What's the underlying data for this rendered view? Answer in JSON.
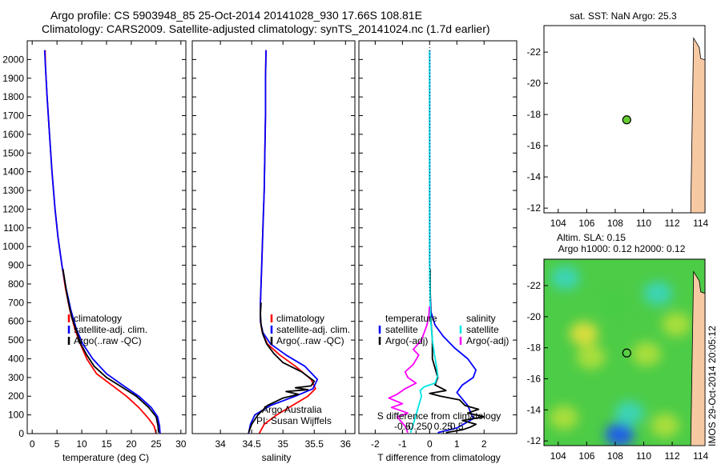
{
  "page": {
    "title_line1": "Argo profile: CS 5903948_85 25-Oct-2014 20141028_930 17.66S 108.81E",
    "title_line2": "Climatology: CARS2009. Satellite-adjusted climatology: synTS_20141024.nc (1.7d earlier)",
    "footer_vertical": "IMOS 29-Oct-2014 20:05:12"
  },
  "colors": {
    "climatology": "#ff0000",
    "satellite": "#0000ff",
    "argo": "#000000",
    "sal_satellite": "#00e5e5",
    "sal_argo": "#ff00ff",
    "marker": "#66cc33",
    "land": "#f7c9a3"
  },
  "chart_data": [
    {
      "id": "temperature",
      "type": "line",
      "xlabel": "temperature (deg C)",
      "xlim": [
        -1,
        31
      ],
      "ylim": [
        2100,
        0
      ],
      "xticks": [
        0,
        5,
        10,
        15,
        20,
        25,
        30
      ],
      "xtick_labels": [
        "0",
        "5",
        "10",
        "15",
        "20",
        "25",
        "30"
      ],
      "yticks": [
        0,
        100,
        200,
        300,
        400,
        500,
        600,
        700,
        800,
        900,
        1000,
        1100,
        1200,
        1300,
        1400,
        1500,
        1600,
        1700,
        1800,
        1900,
        2000
      ],
      "ytick_labels": [
        "0",
        "100",
        "200",
        "300",
        "400",
        "500",
        "600",
        "700",
        "800",
        "900",
        "1000",
        "1100",
        "1200",
        "1300",
        "1400",
        "1500",
        "1600",
        "1700",
        "1800",
        "1900",
        "2000"
      ],
      "legend": [
        "climatology",
        "satellite-adj. clim.",
        "Argo(..raw -QC)"
      ],
      "series": [
        {
          "name": "climatology",
          "color_key": "climatology",
          "points": [
            [
              25.0,
              0
            ],
            [
              24.6,
              40
            ],
            [
              23.5,
              80
            ],
            [
              21.5,
              140
            ],
            [
              19.0,
              200
            ],
            [
              16.0,
              260
            ],
            [
              13.0,
              320
            ],
            [
              11.0,
              400
            ],
            [
              9.7,
              480
            ],
            [
              8.6,
              560
            ],
            [
              7.6,
              660
            ],
            [
              6.7,
              780
            ],
            [
              6.0,
              900
            ],
            [
              5.2,
              1050
            ],
            [
              4.6,
              1200
            ],
            [
              4.0,
              1400
            ],
            [
              3.5,
              1600
            ],
            [
              3.0,
              1800
            ],
            [
              2.7,
              1950
            ],
            [
              2.6,
              2050
            ]
          ]
        },
        {
          "name": "satellite-adj. clim.",
          "color_key": "satellite",
          "points": [
            [
              25.8,
              0
            ],
            [
              25.7,
              40
            ],
            [
              25.3,
              90
            ],
            [
              24.0,
              140
            ],
            [
              21.5,
              200
            ],
            [
              18.2,
              260
            ],
            [
              15.0,
              320
            ],
            [
              12.2,
              400
            ],
            [
              10.2,
              480
            ],
            [
              8.9,
              560
            ],
            [
              7.8,
              660
            ],
            [
              6.8,
              780
            ],
            [
              6.0,
              900
            ],
            [
              5.2,
              1050
            ],
            [
              4.6,
              1200
            ],
            [
              4.0,
              1400
            ],
            [
              3.5,
              1600
            ],
            [
              3.0,
              1800
            ],
            [
              2.7,
              1950
            ],
            [
              2.5,
              2050
            ]
          ]
        },
        {
          "name": "Argo(..raw -QC)",
          "color_key": "argo",
          "points": [
            [
              25.5,
              5
            ],
            [
              25.4,
              40
            ],
            [
              25.0,
              90
            ],
            [
              23.5,
              140
            ],
            [
              21.0,
              200
            ],
            [
              18.0,
              250
            ],
            [
              15.0,
              300
            ],
            [
              12.5,
              360
            ],
            [
              11.0,
              420
            ],
            [
              9.8,
              480
            ],
            [
              8.9,
              550
            ],
            [
              8.0,
              620
            ],
            [
              7.4,
              690
            ],
            [
              6.9,
              760
            ],
            [
              6.5,
              830
            ],
            [
              6.2,
              880
            ]
          ]
        }
      ]
    },
    {
      "id": "salinity",
      "type": "line",
      "xlabel": "salinity",
      "xlim": [
        33.55,
        36.15
      ],
      "ylim": [
        2100,
        0
      ],
      "xticks": [
        34,
        34.5,
        35,
        35.5,
        36
      ],
      "xtick_labels": [
        "34",
        "34.5",
        "35",
        "35.5",
        "36"
      ],
      "legend": [
        "climatology",
        "satellite-adj. clim.",
        "Argo(..raw -QC)"
      ],
      "annotation_lines": [
        "Argo Australia",
        "PI: Susan Wijffels"
      ],
      "series": [
        {
          "name": "climatology",
          "color_key": "climatology",
          "points": [
            [
              34.62,
              0
            ],
            [
              34.7,
              50
            ],
            [
              34.9,
              100
            ],
            [
              35.15,
              150
            ],
            [
              35.4,
              200
            ],
            [
              35.52,
              240
            ],
            [
              35.45,
              290
            ],
            [
              35.2,
              360
            ],
            [
              34.95,
              420
            ],
            [
              34.75,
              480
            ],
            [
              34.67,
              540
            ],
            [
              34.64,
              600
            ],
            [
              34.64,
              700
            ],
            [
              34.66,
              900
            ],
            [
              34.68,
              1100
            ],
            [
              34.7,
              1300
            ],
            [
              34.71,
              1500
            ],
            [
              34.72,
              1700
            ],
            [
              34.72,
              1900
            ],
            [
              34.73,
              2050
            ]
          ]
        },
        {
          "name": "satellite-adj. clim.",
          "color_key": "satellite",
          "points": [
            [
              34.45,
              0
            ],
            [
              34.48,
              50
            ],
            [
              34.55,
              100
            ],
            [
              34.8,
              150
            ],
            [
              35.2,
              200
            ],
            [
              35.48,
              240
            ],
            [
              35.55,
              290
            ],
            [
              35.35,
              360
            ],
            [
              35.05,
              420
            ],
            [
              34.8,
              480
            ],
            [
              34.68,
              540
            ],
            [
              34.64,
              600
            ],
            [
              34.64,
              700
            ],
            [
              34.66,
              900
            ],
            [
              34.68,
              1100
            ],
            [
              34.7,
              1300
            ],
            [
              34.71,
              1500
            ],
            [
              34.72,
              1700
            ],
            [
              34.72,
              1900
            ],
            [
              34.73,
              2050
            ]
          ]
        },
        {
          "name": "Argo(..raw -QC)",
          "color_key": "argo",
          "points": [
            [
              34.45,
              5
            ],
            [
              34.5,
              50
            ],
            [
              34.6,
              100
            ],
            [
              34.75,
              150
            ],
            [
              35.0,
              190
            ],
            [
              35.25,
              210
            ],
            [
              35.05,
              225
            ],
            [
              35.4,
              235
            ],
            [
              35.2,
              245
            ],
            [
              35.45,
              255
            ],
            [
              35.5,
              280
            ],
            [
              35.3,
              330
            ],
            [
              35.0,
              380
            ],
            [
              34.85,
              430
            ],
            [
              34.74,
              480
            ],
            [
              34.68,
              530
            ],
            [
              34.65,
              580
            ],
            [
              34.64,
              640
            ],
            [
              34.65,
              700
            ]
          ]
        }
      ]
    },
    {
      "id": "difference",
      "type": "line",
      "xlabel": "T difference from climatology",
      "xlabel_top": "S difference from climatology",
      "xlim": [
        -2.6,
        3.2
      ],
      "ylim": [
        2100,
        0
      ],
      "xticks": [
        -2,
        -1,
        0,
        1,
        2
      ],
      "xtick_labels": [
        "-2",
        "-1",
        "0",
        "1",
        "2"
      ],
      "sticks": [
        -1,
        -0.5,
        0,
        0.5,
        1
      ],
      "stick_labels": [
        "-0.5",
        "-0.25",
        "0",
        "0.25",
        "0.5"
      ],
      "legend_temperature_title": "temperature",
      "legend_salinity_title": "salinity",
      "legend_satellite": "satellite",
      "legend_argo": "Argo(-adj)",
      "series": [
        {
          "name": "T satellite",
          "color_key": "satellite",
          "points": [
            [
              0.3,
              5
            ],
            [
              1.0,
              30
            ],
            [
              1.6,
              80
            ],
            [
              1.4,
              150
            ],
            [
              1.0,
              220
            ],
            [
              1.2,
              260
            ],
            [
              1.6,
              300
            ],
            [
              1.7,
              340
            ],
            [
              1.4,
              400
            ],
            [
              0.9,
              460
            ],
            [
              0.5,
              520
            ],
            [
              0.2,
              580
            ],
            [
              0.05,
              650
            ],
            [
              0.02,
              750
            ],
            [
              0.0,
              900
            ],
            [
              0.0,
              1200
            ],
            [
              0.0,
              1600
            ],
            [
              0.0,
              2050
            ]
          ]
        },
        {
          "name": "T Argo",
          "color_key": "argo",
          "points": [
            [
              0.6,
              5
            ],
            [
              1.2,
              20
            ],
            [
              1.5,
              35
            ],
            [
              1.7,
              50
            ],
            [
              1.2,
              70
            ],
            [
              2.0,
              90
            ],
            [
              1.4,
              110
            ],
            [
              1.8,
              130
            ],
            [
              1.3,
              150
            ],
            [
              1.1,
              180
            ],
            [
              0.4,
              200
            ],
            [
              0.0,
              215
            ],
            [
              0.6,
              230
            ],
            [
              0.2,
              260
            ],
            [
              0.3,
              300
            ],
            [
              0.1,
              400
            ],
            [
              0.1,
              500
            ],
            [
              0.05,
              600
            ],
            [
              0.03,
              700
            ],
            [
              0.02,
              800
            ],
            [
              0.02,
              880
            ]
          ]
        },
        {
          "name": "S satellite",
          "color_key": "sal_satellite",
          "points": [
            [
              -0.7,
              5
            ],
            [
              -0.6,
              50
            ],
            [
              -0.5,
              100
            ],
            [
              -0.4,
              150
            ],
            [
              -0.3,
              200
            ],
            [
              -0.35,
              230
            ],
            [
              -0.2,
              250
            ],
            [
              0.2,
              270
            ],
            [
              0.3,
              310
            ],
            [
              0.25,
              360
            ],
            [
              0.18,
              420
            ],
            [
              0.1,
              500
            ],
            [
              0.04,
              600
            ],
            [
              0.02,
              700
            ],
            [
              0.0,
              900
            ],
            [
              0.0,
              1300
            ],
            [
              0.0,
              2050
            ]
          ]
        },
        {
          "name": "S Argo",
          "color_key": "sal_argo",
          "points": [
            [
              -0.8,
              5
            ],
            [
              -0.9,
              40
            ],
            [
              -1.2,
              90
            ],
            [
              -0.8,
              110
            ],
            [
              -1.4,
              140
            ],
            [
              -1.0,
              160
            ],
            [
              -1.5,
              190
            ],
            [
              -1.2,
              210
            ],
            [
              -0.9,
              240
            ],
            [
              -0.5,
              270
            ],
            [
              -0.8,
              300
            ],
            [
              -0.9,
              330
            ],
            [
              -0.6,
              370
            ],
            [
              -0.4,
              420
            ],
            [
              -0.6,
              450
            ],
            [
              -0.3,
              500
            ],
            [
              -0.2,
              540
            ],
            [
              -0.1,
              580
            ],
            [
              -0.03,
              630
            ],
            [
              -0.01,
              680
            ]
          ]
        }
      ]
    },
    {
      "id": "sst_map",
      "type": "scatter",
      "title": "sat. SST: NaN Argo: 25.3",
      "xlim": [
        103,
        114.3
      ],
      "ylim": [
        -23.7,
        -11.7
      ],
      "xticks": [
        104,
        106,
        108,
        110,
        112,
        114
      ],
      "xtick_labels": [
        "104",
        "106",
        "108",
        "110",
        "112",
        "114"
      ],
      "yticks": [
        -12,
        -14,
        -16,
        -18,
        -20,
        -22
      ],
      "ytick_labels": [
        "-12",
        "-14",
        "-16",
        "-18",
        "-20",
        "-22"
      ],
      "points": [
        {
          "x": 108.81,
          "y": -17.66
        }
      ]
    },
    {
      "id": "sla_map",
      "type": "heatmap",
      "title_line1": "Altim. SLA: 0.15",
      "title_line2": "Argo h1000: 0.12 h2000: 0.12",
      "xlim": [
        103,
        114.3
      ],
      "ylim": [
        -23.7,
        -11.7
      ],
      "xticks": [
        104,
        106,
        108,
        110,
        112,
        114
      ],
      "xtick_labels": [
        "104",
        "106",
        "108",
        "110",
        "112",
        "114"
      ],
      "yticks": [
        -12,
        -14,
        -16,
        -18,
        -20,
        -22
      ],
      "ytick_labels": [
        "-12",
        "-14",
        "-16",
        "-18",
        "-20",
        "-22"
      ],
      "points": [
        {
          "x": 108.81,
          "y": -17.66
        }
      ],
      "features": [
        {
          "x": 108.3,
          "y": -12.4,
          "level": 0.12
        },
        {
          "x": 109.0,
          "y": -13.8,
          "level": 0.3
        },
        {
          "x": 105.8,
          "y": -18.9,
          "level": 0.78
        },
        {
          "x": 106.3,
          "y": -17.4,
          "level": 0.68
        },
        {
          "x": 111.5,
          "y": -13.0,
          "level": 0.66
        },
        {
          "x": 110.2,
          "y": -17.6,
          "level": 0.64
        },
        {
          "x": 104.4,
          "y": -13.5,
          "level": 0.6
        },
        {
          "x": 112.3,
          "y": -19.5,
          "level": 0.6
        },
        {
          "x": 107.9,
          "y": -20.8,
          "level": 0.58
        },
        {
          "x": 111.0,
          "y": -21.5,
          "level": 0.4
        },
        {
          "x": 104.5,
          "y": -22.5,
          "level": 0.4
        }
      ]
    }
  ]
}
